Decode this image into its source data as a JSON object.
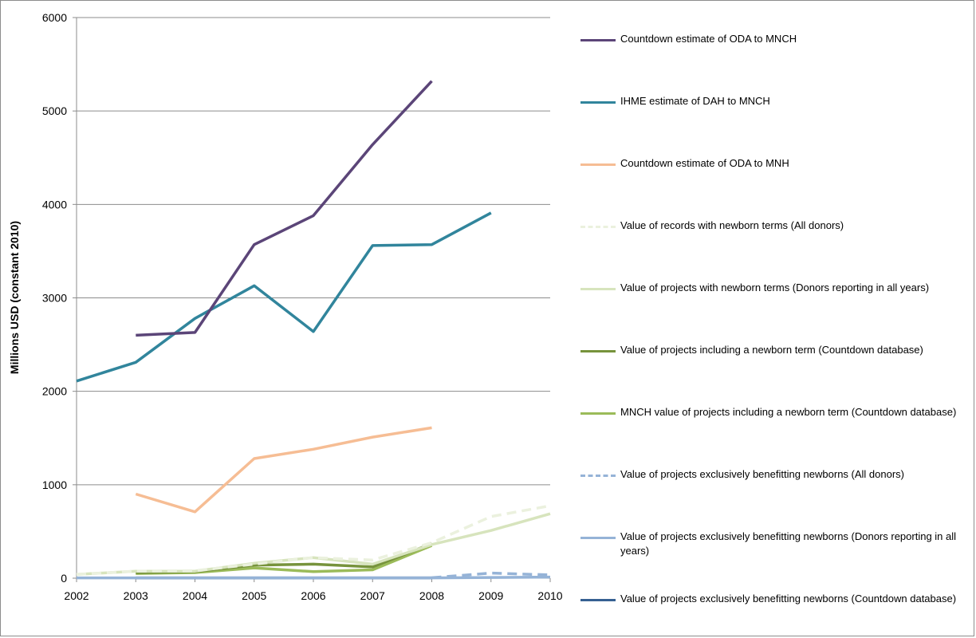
{
  "chart_data": {
    "type": "line",
    "title": "",
    "xlabel": "",
    "ylabel": "Millions USD (constant 2010)",
    "x": [
      "2002",
      "2003",
      "2004",
      "2005",
      "2006",
      "2007",
      "2008",
      "2009",
      "2010"
    ],
    "yticks": [
      "0",
      "1000",
      "2000",
      "3000",
      "4000",
      "5000",
      "6000"
    ],
    "ylim": [
      0,
      6000
    ],
    "grid": true,
    "legend_position": "right",
    "series": [
      {
        "name": "Countdown estimate of ODA to MNCH",
        "color": "#5b4578",
        "dash": "solid",
        "width": 3.5,
        "values": [
          null,
          2600,
          2630,
          3570,
          3880,
          4640,
          5320,
          null,
          null
        ]
      },
      {
        "name": "IHME estimate of DAH to MNCH",
        "color": "#31859c",
        "dash": "solid",
        "width": 3.5,
        "values": [
          2110,
          2310,
          2780,
          3130,
          2640,
          3560,
          3570,
          3910,
          null
        ]
      },
      {
        "name": "Countdown estimate of ODA to MNH",
        "color": "#f6bd94",
        "dash": "solid",
        "width": 3.5,
        "values": [
          null,
          900,
          710,
          1280,
          1380,
          1510,
          1610,
          null,
          null
        ]
      },
      {
        "name": "Value of records with newborn terms (All donors)",
        "color": "#ebf1de",
        "dash": "dashed",
        "width": 3.5,
        "values": [
          40,
          75,
          80,
          150,
          220,
          195,
          380,
          660,
          775
        ]
      },
      {
        "name": "Value of projects with newborn terms (Donors reporting in all years)",
        "color": "#d7e4bd",
        "dash": "solid",
        "width": 3.5,
        "values": [
          40,
          75,
          75,
          160,
          220,
          150,
          360,
          510,
          690
        ]
      },
      {
        "name": "Value of projects including a newborn term (Countdown database)",
        "color": "#77933c",
        "dash": "solid",
        "width": 3.5,
        "values": [
          null,
          60,
          70,
          140,
          150,
          120,
          370,
          null,
          null
        ]
      },
      {
        "name": "MNCH value of projects including a newborn term (Countdown database)",
        "color": "#9bbb59",
        "dash": "solid",
        "width": 3.5,
        "values": [
          null,
          50,
          60,
          110,
          70,
          90,
          350,
          null,
          null
        ]
      },
      {
        "name": "Value of projects exclusively benefitting newborns (All donors)",
        "color": "#95b3d7",
        "dash": "dashed",
        "width": 3.5,
        "values": [
          null,
          null,
          null,
          null,
          null,
          null,
          5,
          55,
          35
        ]
      },
      {
        "name": "Value of projects exclusively benefitting newborns (Donors reporting in all years)",
        "color": "#95b3d7",
        "dash": "solid",
        "width": 3.5,
        "values": [
          3,
          3,
          3,
          3,
          3,
          3,
          3,
          8,
          12
        ]
      },
      {
        "name": "Value of projects exclusively benefitting newborns (Countdown database)",
        "color": "#366092",
        "dash": "solid",
        "width": 3.5,
        "values": [
          null,
          3,
          3,
          3,
          3,
          3,
          3,
          null,
          null
        ]
      }
    ]
  }
}
